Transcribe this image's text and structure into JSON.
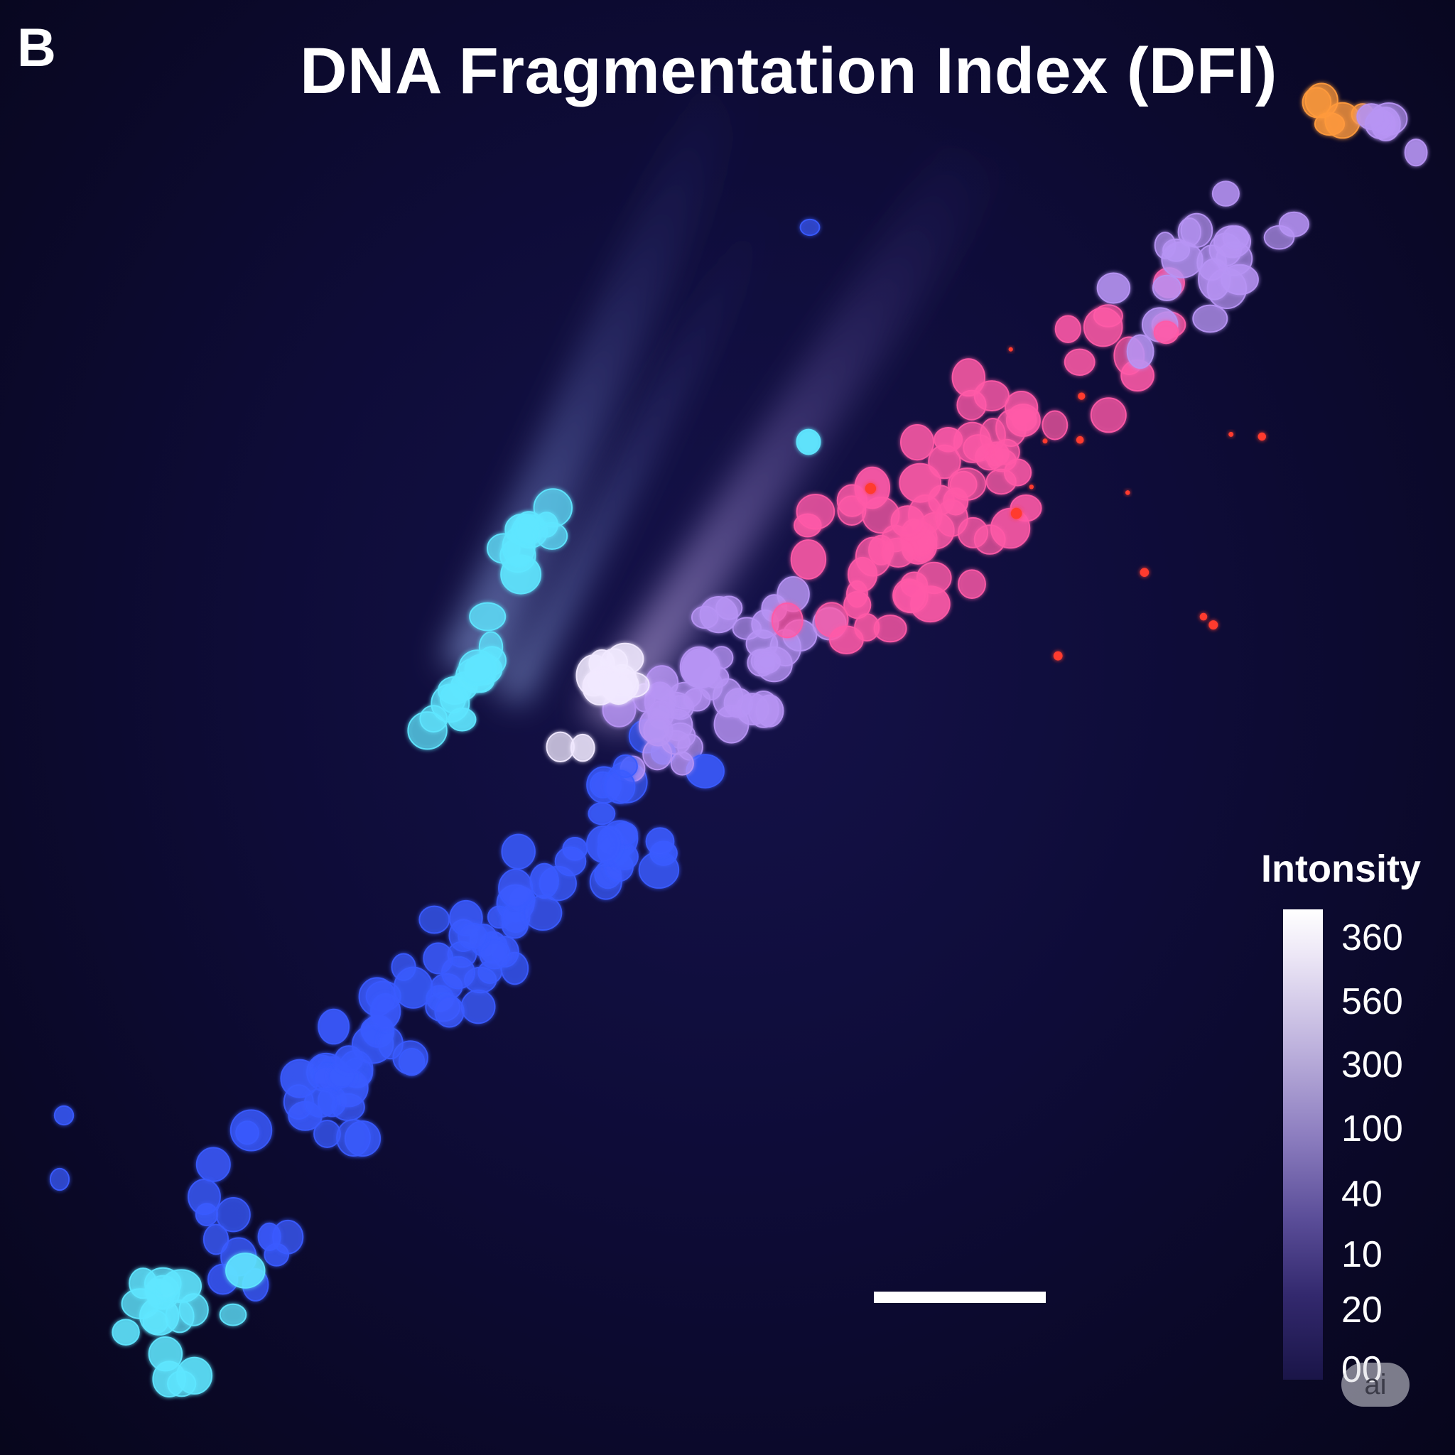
{
  "figure": {
    "panel_label": "B",
    "title": "DNA Fragmentation Index (DFI)"
  },
  "legend": {
    "title": "Intonsity",
    "ticks": [
      "360",
      "560",
      "300",
      "100",
      "40",
      "10",
      "20",
      "00"
    ]
  },
  "watermark": {
    "text": "ai"
  },
  "colors": {
    "background": "#0b0a2c",
    "cell_cyan": "#5fe6ff",
    "cell_blue": "#3a5bff",
    "cell_violet": "#b794f4",
    "cell_pink": "#ff5aa8",
    "cell_red": "#ff3b2f",
    "cell_orange": "#ff9a3c",
    "text": "#ffffff"
  }
}
